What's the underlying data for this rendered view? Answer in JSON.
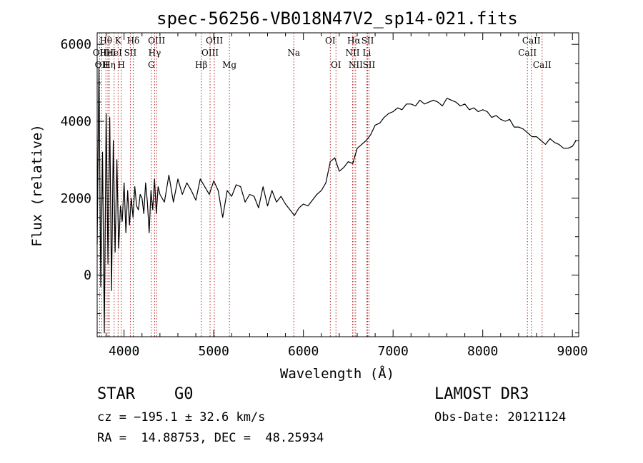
{
  "chart_data": {
    "type": "line",
    "title": "spec-56256-VB018N47V2_sp14-021.fits",
    "xlabel": "Wavelength (Å)",
    "ylabel": "Flux (relative)",
    "xlim": [
      3700,
      9070
    ],
    "ylim": [
      -1600,
      6300
    ],
    "xticks": [
      {
        "value": 4000,
        "label": "4000"
      },
      {
        "value": 5000,
        "label": "5000"
      },
      {
        "value": 6000,
        "label": "6000"
      },
      {
        "value": 7000,
        "label": "7000"
      },
      {
        "value": 8000,
        "label": "8000"
      },
      {
        "value": 9000,
        "label": "9000"
      }
    ],
    "yticks": [
      {
        "value": 0,
        "label": "0"
      },
      {
        "value": 2000,
        "label": "2000"
      },
      {
        "value": 4000,
        "label": "4000"
      },
      {
        "value": 6000,
        "label": "6000"
      }
    ],
    "series": [
      {
        "name": "spectrum",
        "color": "#000000",
        "x": [
          3700,
          3720,
          3740,
          3760,
          3780,
          3800,
          3820,
          3840,
          3860,
          3880,
          3900,
          3920,
          3940,
          3960,
          3980,
          4000,
          4020,
          4040,
          4060,
          4080,
          4100,
          4120,
          4140,
          4160,
          4180,
          4200,
          4220,
          4240,
          4260,
          4280,
          4300,
          4320,
          4340,
          4360,
          4380,
          4400,
          4450,
          4500,
          4550,
          4600,
          4650,
          4700,
          4750,
          4800,
          4850,
          4900,
          4950,
          5000,
          5050,
          5100,
          5150,
          5200,
          5250,
          5300,
          5350,
          5400,
          5450,
          5500,
          5550,
          5600,
          5650,
          5700,
          5750,
          5800,
          5850,
          5900,
          5950,
          6000,
          6050,
          6100,
          6150,
          6200,
          6250,
          6300,
          6350,
          6400,
          6450,
          6500,
          6550,
          6600,
          6650,
          6700,
          6750,
          6800,
          6850,
          6900,
          6950,
          7000,
          7050,
          7100,
          7150,
          7200,
          7250,
          7300,
          7350,
          7400,
          7450,
          7500,
          7550,
          7600,
          7650,
          7700,
          7750,
          7800,
          7850,
          7900,
          7950,
          8000,
          8050,
          8100,
          8150,
          8200,
          8250,
          8300,
          8350,
          8400,
          8450,
          8500,
          8550,
          8600,
          8650,
          8700,
          8750,
          8800,
          8850,
          8900,
          8950,
          9000,
          9040
        ],
        "y": [
          800,
          5400,
          -300,
          3200,
          -1500,
          4200,
          300,
          4100,
          -400,
          3500,
          600,
          3000,
          700,
          1800,
          1400,
          2400,
          1100,
          2200,
          1300,
          2000,
          1500,
          2300,
          1800,
          1700,
          2100,
          2000,
          1600,
          2400,
          1900,
          1100,
          2200,
          1700,
          2500,
          1600,
          2300,
          2100,
          1900,
          2600,
          1900,
          2500,
          2100,
          2400,
          2200,
          1950,
          2500,
          2300,
          2100,
          2450,
          2200,
          1500,
          2200,
          2050,
          2350,
          2300,
          1900,
          2100,
          2050,
          1750,
          2300,
          1800,
          2200,
          1900,
          2050,
          1850,
          1700,
          1550,
          1750,
          1850,
          1800,
          1950,
          2100,
          2200,
          2400,
          2950,
          3050,
          2700,
          2800,
          2950,
          2900,
          3300,
          3400,
          3500,
          3650,
          3900,
          3950,
          4100,
          4200,
          4250,
          4350,
          4300,
          4450,
          4450,
          4400,
          4550,
          4450,
          4500,
          4550,
          4500,
          4400,
          4600,
          4550,
          4500,
          4400,
          4450,
          4300,
          4350,
          4250,
          4300,
          4250,
          4100,
          4150,
          4050,
          4000,
          4050,
          3850,
          3850,
          3800,
          3700,
          3600,
          3600,
          3500,
          3400,
          3550,
          3450,
          3400,
          3300,
          3300,
          3350,
          3500
        ]
      }
    ],
    "emission_lines": [
      {
        "wave": 3727,
        "label": "OII",
        "row": 2
      },
      {
        "wave": 3750,
        "label": "OII",
        "row": 3
      },
      {
        "wave": 3797,
        "label": "Hθ",
        "row": 1
      },
      {
        "wave": 3820,
        "label": "HeI",
        "row": 2
      },
      {
        "wave": 3835,
        "label": "Hη",
        "row": 3
      },
      {
        "wave": 3889,
        "label": "HeI",
        "row": 2
      },
      {
        "wave": 3934,
        "label": "K",
        "row": 1
      },
      {
        "wave": 3969,
        "label": "H",
        "row": 3
      },
      {
        "wave": 4070,
        "label": "SII",
        "row": 2
      },
      {
        "wave": 4102,
        "label": "Hδ",
        "row": 1
      },
      {
        "wave": 4304,
        "label": "G",
        "row": 3
      },
      {
        "wave": 4341,
        "label": "Hγ",
        "row": 2
      },
      {
        "wave": 4363,
        "label": "OIII",
        "row": 1
      },
      {
        "wave": 4861,
        "label": "Hβ",
        "row": 3
      },
      {
        "wave": 4959,
        "label": "OIII",
        "row": 2
      },
      {
        "wave": 5007,
        "label": "OIII",
        "row": 1
      },
      {
        "wave": 5175,
        "label": "Mg",
        "row": 3
      },
      {
        "wave": 5893,
        "label": "Na",
        "row": 2
      },
      {
        "wave": 6300,
        "label": "OI",
        "row": 1
      },
      {
        "wave": 6363,
        "label": "OI",
        "row": 3
      },
      {
        "wave": 6548,
        "label": "NII",
        "row": 2
      },
      {
        "wave": 6563,
        "label": "Hα",
        "row": 1
      },
      {
        "wave": 6583,
        "label": "NII",
        "row": 3
      },
      {
        "wave": 6707,
        "label": "Li",
        "row": 2
      },
      {
        "wave": 6716,
        "label": "SII",
        "row": 1
      },
      {
        "wave": 6731,
        "label": "SII",
        "row": 3
      },
      {
        "wave": 8498,
        "label": "CaII",
        "row": 2
      },
      {
        "wave": 8542,
        "label": "CaII",
        "row": 1
      },
      {
        "wave": 8662,
        "label": "CaII",
        "row": 3
      }
    ]
  },
  "info": {
    "class": "STAR",
    "subclass": "G0",
    "survey": "LAMOST DR3",
    "cz": "cz = −195.1 ± 32.6 km/s",
    "obs_date": "Obs-Date: 20121124",
    "coords": "RA =  14.88753, DEC =  48.25934"
  }
}
